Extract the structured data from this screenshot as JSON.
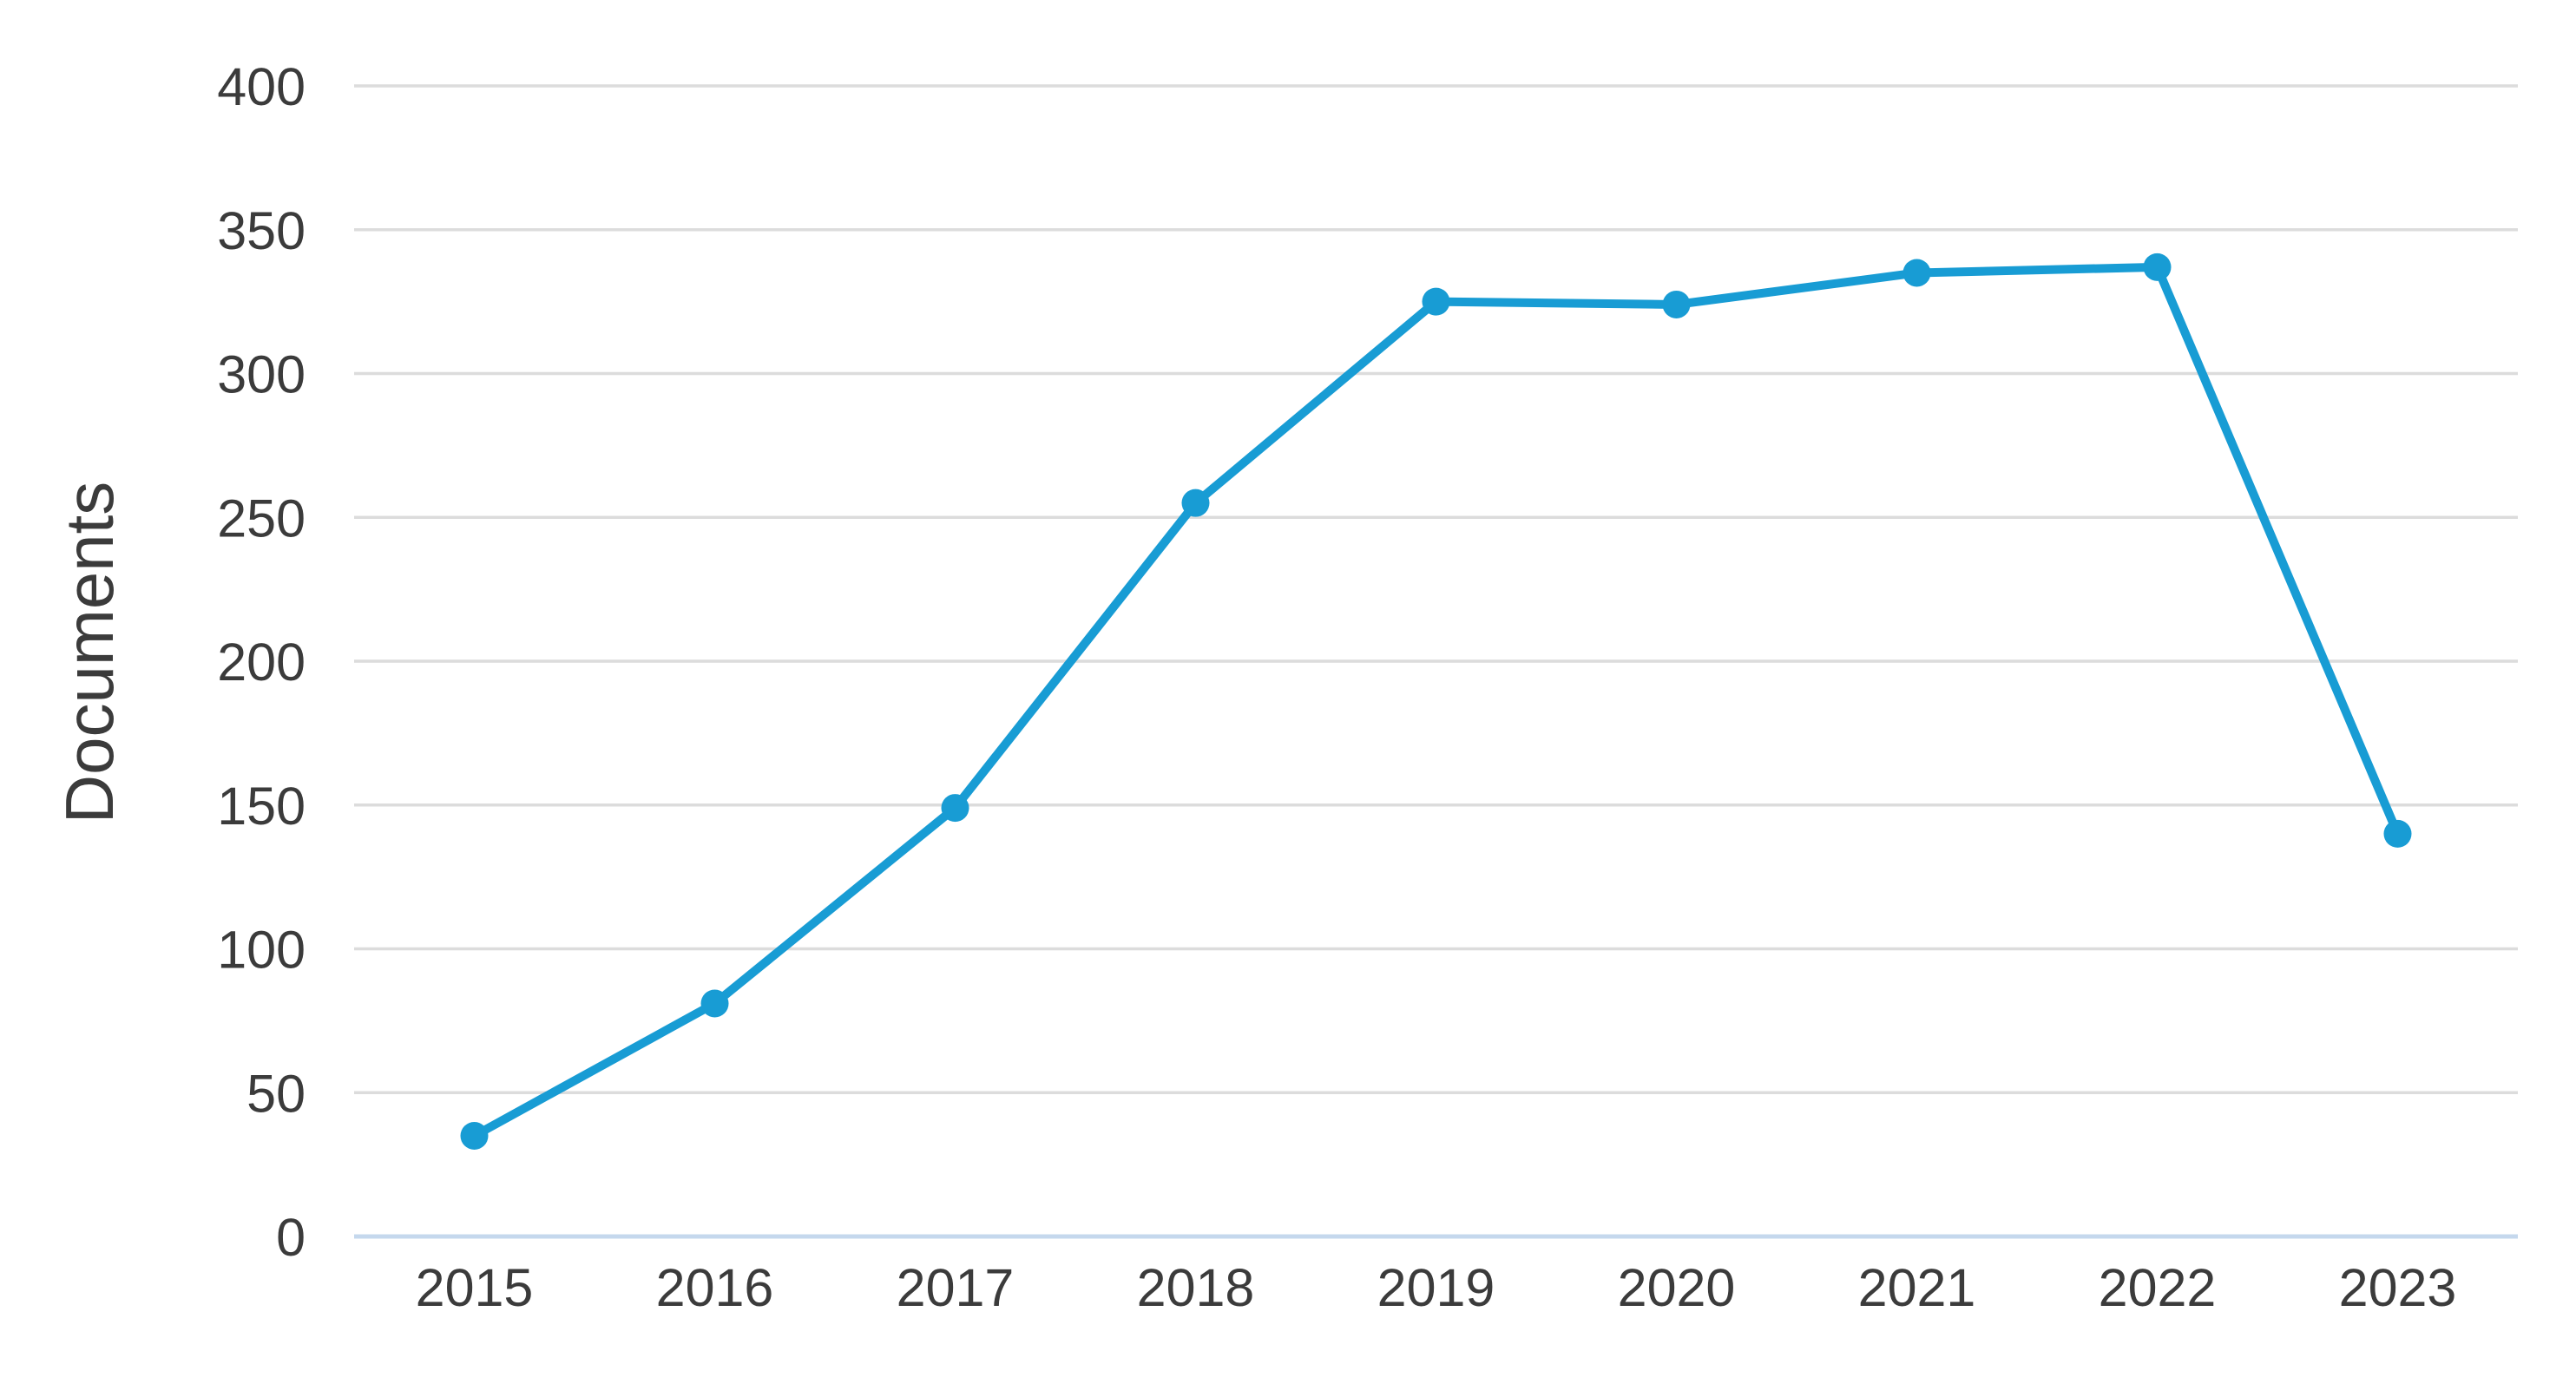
{
  "chart_data": {
    "type": "line",
    "title": "",
    "xlabel": "",
    "ylabel": "Documents",
    "categories": [
      "2015",
      "2016",
      "2017",
      "2018",
      "2019",
      "2020",
      "2021",
      "2022",
      "2023"
    ],
    "series": [
      {
        "name": "Documents",
        "values": [
          35,
          81,
          149,
          255,
          325,
          324,
          335,
          337,
          140
        ]
      }
    ],
    "ylim": [
      0,
      400
    ],
    "yticks": [
      0,
      50,
      100,
      150,
      200,
      250,
      300,
      350,
      400
    ],
    "grid": "horizontal-only",
    "legend": "none",
    "marker": "circle",
    "colors": {
      "line": "#189cd4",
      "marker": "#189cd4",
      "gridline": "#dcdcdc",
      "axis_baseline": "#c5d8ed",
      "tick_label": "#3b3b3b",
      "axis_title": "#3b3b3b",
      "background": "#ffffff"
    }
  }
}
